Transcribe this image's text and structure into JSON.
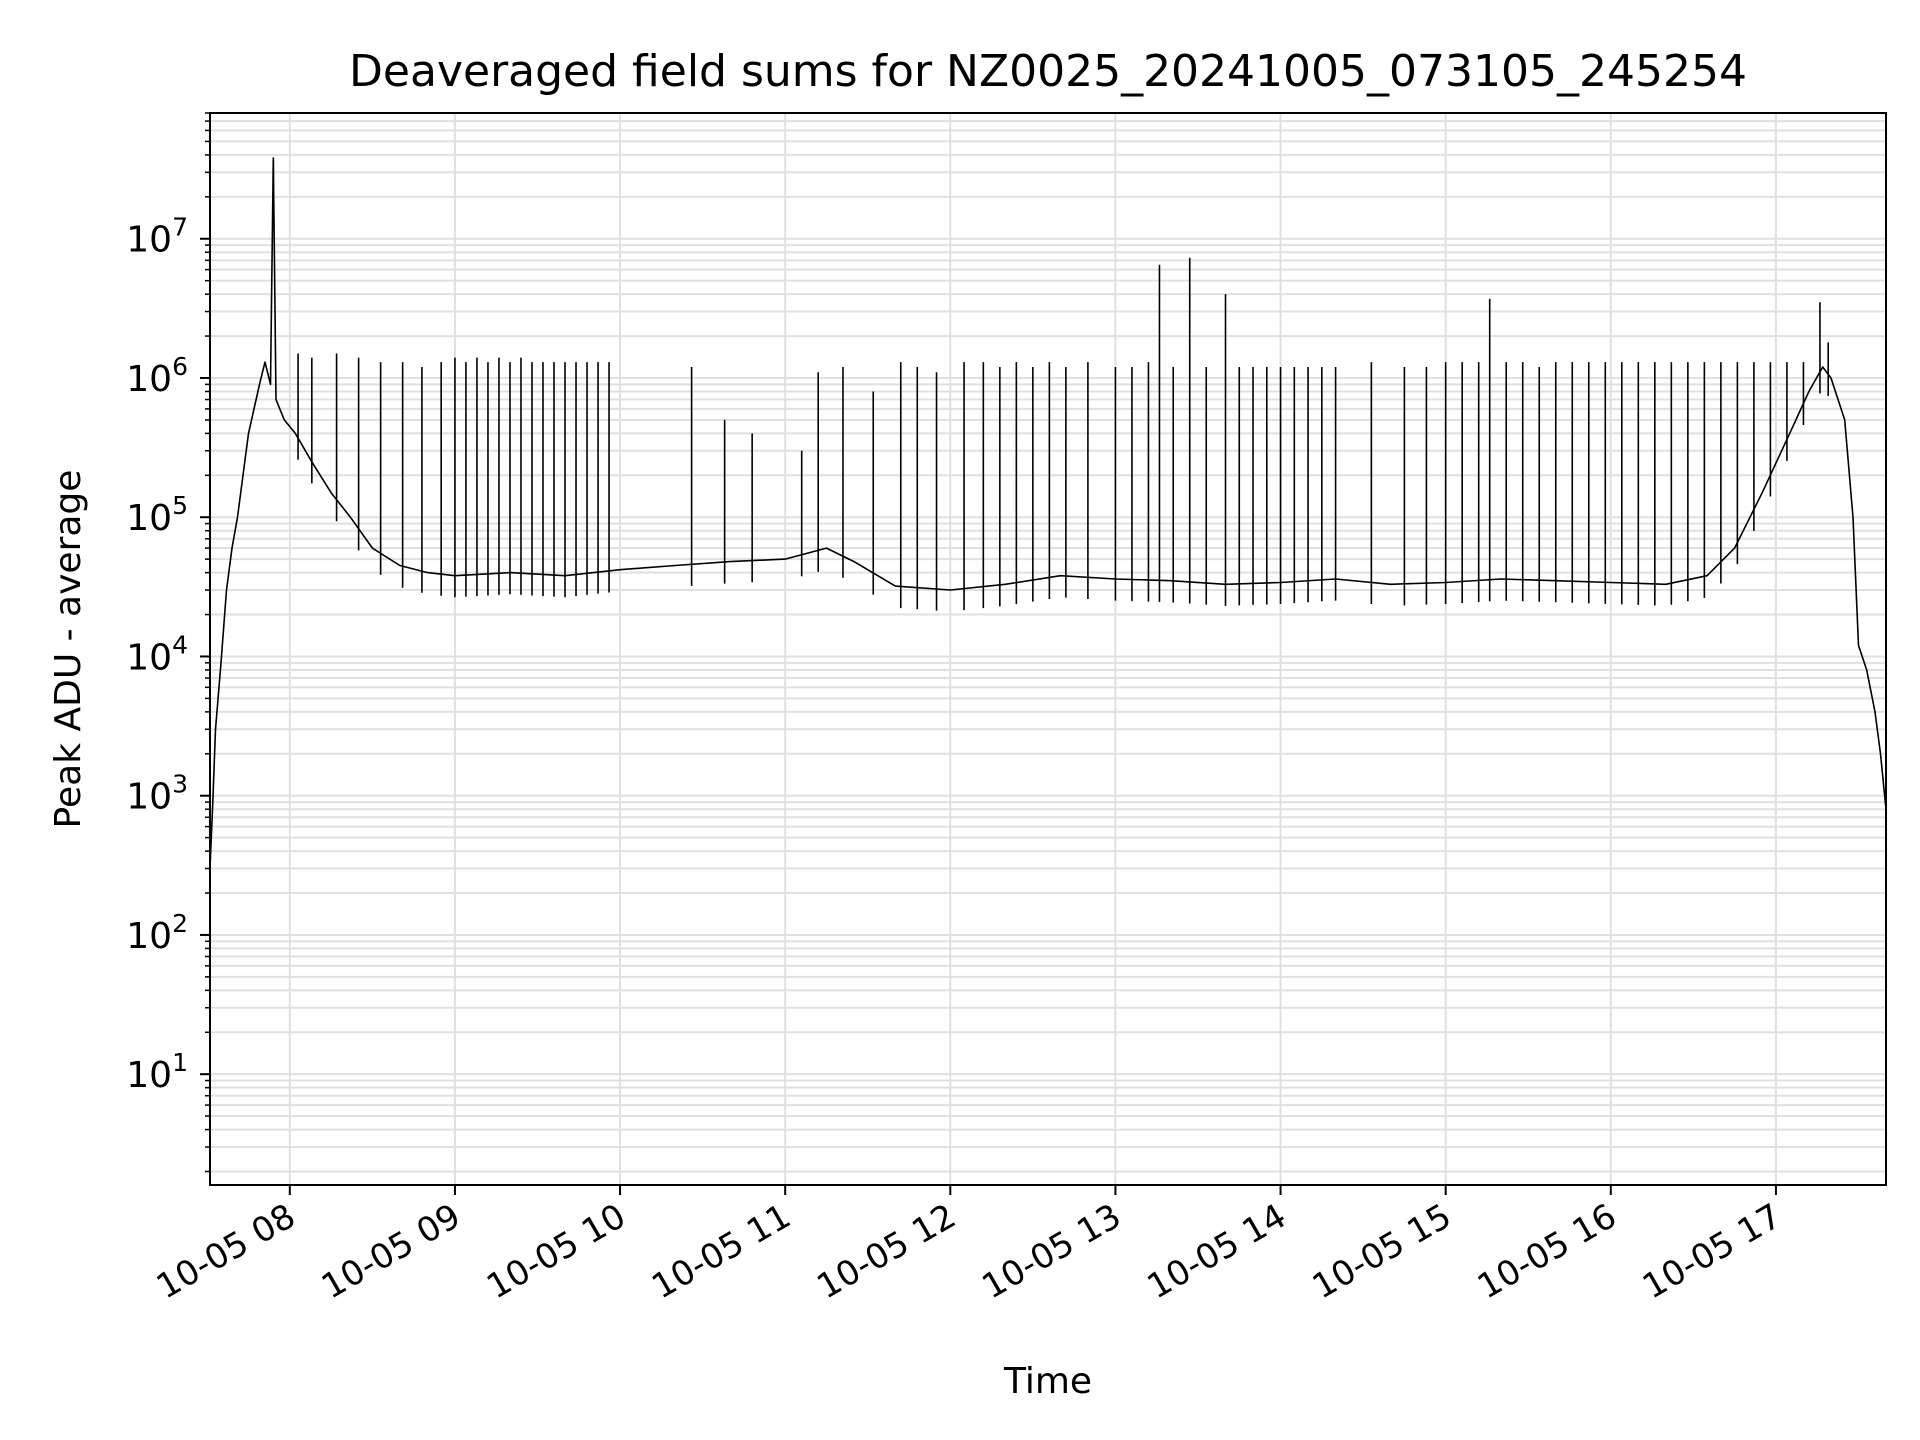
{
  "chart_data": {
    "type": "line",
    "title": "Deaveraged field sums for NZ0025_20241005_073105_245254",
    "xlabel": "Time",
    "ylabel": "Peak ADU - average",
    "yscale": "log",
    "ylim": [
      1.6,
      80000000
    ],
    "xlim": [
      "2024-10-05 07:31",
      "2024-10-05 17:40"
    ],
    "grid": true,
    "grid_color": "#e0e0e0",
    "line_color": "#000000",
    "x_ticks": [
      {
        "value": "2024-10-05 08:00",
        "label": "10-05 08"
      },
      {
        "value": "2024-10-05 09:00",
        "label": "10-05 09"
      },
      {
        "value": "2024-10-05 10:00",
        "label": "10-05 10"
      },
      {
        "value": "2024-10-05 11:00",
        "label": "10-05 11"
      },
      {
        "value": "2024-10-05 12:00",
        "label": "10-05 12"
      },
      {
        "value": "2024-10-05 13:00",
        "label": "10-05 13"
      },
      {
        "value": "2024-10-05 14:00",
        "label": "10-05 14"
      },
      {
        "value": "2024-10-05 15:00",
        "label": "10-05 15"
      },
      {
        "value": "2024-10-05 16:00",
        "label": "10-05 16"
      },
      {
        "value": "2024-10-05 17:00",
        "label": "10-05 17"
      }
    ],
    "y_ticks": [
      {
        "value": 10,
        "base": "10",
        "exp": "1"
      },
      {
        "value": 100,
        "base": "10",
        "exp": "2"
      },
      {
        "value": 1000,
        "base": "10",
        "exp": "3"
      },
      {
        "value": 10000,
        "base": "10",
        "exp": "4"
      },
      {
        "value": 100000,
        "base": "10",
        "exp": "5"
      },
      {
        "value": 1000000,
        "base": "10",
        "exp": "6"
      },
      {
        "value": 10000000,
        "base": "10",
        "exp": "7"
      }
    ],
    "series": [
      {
        "points": [
          [
            "2024-10-05 07:31",
            300
          ],
          [
            "2024-10-05 07:32",
            900
          ],
          [
            "2024-10-05 07:33",
            3000
          ],
          [
            "2024-10-05 07:35",
            9000
          ],
          [
            "2024-10-05 07:37",
            30000
          ],
          [
            "2024-10-05 07:39",
            60000
          ],
          [
            "2024-10-05 07:41",
            100000
          ],
          [
            "2024-10-05 07:43",
            200000
          ],
          [
            "2024-10-05 07:45",
            400000
          ],
          [
            "2024-10-05 07:47",
            600000
          ],
          [
            "2024-10-05 07:49",
            900000
          ],
          [
            "2024-10-05 07:51",
            1300000
          ],
          [
            "2024-10-05 07:53",
            900000
          ],
          [
            "2024-10-05 07:54",
            38000000
          ],
          [
            "2024-10-05 07:55",
            700000
          ],
          [
            "2024-10-05 07:58",
            500000
          ],
          [
            "2024-10-05 08:02",
            400000
          ],
          [
            "2024-10-05 08:08",
            250000
          ],
          [
            "2024-10-05 08:15",
            150000
          ],
          [
            "2024-10-05 08:22",
            100000
          ],
          [
            "2024-10-05 08:30",
            60000
          ],
          [
            "2024-10-05 08:40",
            45000
          ],
          [
            "2024-10-05 08:50",
            40000
          ],
          [
            "2024-10-05 09:00",
            38000
          ],
          [
            "2024-10-05 09:20",
            40000
          ],
          [
            "2024-10-05 09:40",
            38000
          ],
          [
            "2024-10-05 10:00",
            42000
          ],
          [
            "2024-10-05 10:20",
            45000
          ],
          [
            "2024-10-05 10:40",
            48000
          ],
          [
            "2024-10-05 11:00",
            50000
          ],
          [
            "2024-10-05 11:15",
            60000
          ],
          [
            "2024-10-05 11:25",
            48000
          ],
          [
            "2024-10-05 11:40",
            32000
          ],
          [
            "2024-10-05 12:00",
            30000
          ],
          [
            "2024-10-05 12:20",
            33000
          ],
          [
            "2024-10-05 12:40",
            38000
          ],
          [
            "2024-10-05 13:00",
            36000
          ],
          [
            "2024-10-05 13:20",
            35000
          ],
          [
            "2024-10-05 13:40",
            33000
          ],
          [
            "2024-10-05 14:00",
            34000
          ],
          [
            "2024-10-05 14:20",
            36000
          ],
          [
            "2024-10-05 14:40",
            33000
          ],
          [
            "2024-10-05 15:00",
            34000
          ],
          [
            "2024-10-05 15:20",
            36000
          ],
          [
            "2024-10-05 15:40",
            35000
          ],
          [
            "2024-10-05 16:00",
            34000
          ],
          [
            "2024-10-05 16:20",
            33000
          ],
          [
            "2024-10-05 16:35",
            38000
          ],
          [
            "2024-10-05 16:45",
            60000
          ],
          [
            "2024-10-05 16:55",
            150000
          ],
          [
            "2024-10-05 17:05",
            400000
          ],
          [
            "2024-10-05 17:12",
            800000
          ],
          [
            "2024-10-05 17:17",
            1200000
          ],
          [
            "2024-10-05 17:20",
            1000000
          ],
          [
            "2024-10-05 17:25",
            500000
          ],
          [
            "2024-10-05 17:28",
            100000
          ],
          [
            "2024-10-05 17:30",
            12000
          ],
          [
            "2024-10-05 17:33",
            8000
          ],
          [
            "2024-10-05 17:36",
            4000
          ],
          [
            "2024-10-05 17:38",
            2000
          ],
          [
            "2024-10-05 17:40",
            800
          ]
        ],
        "spikes": [
          [
            "2024-10-05 07:54",
            38000000
          ],
          [
            "2024-10-05 08:03",
            1500000
          ],
          [
            "2024-10-05 08:08",
            1400000
          ],
          [
            "2024-10-05 08:17",
            1500000
          ],
          [
            "2024-10-05 08:25",
            1400000
          ],
          [
            "2024-10-05 08:33",
            1300000
          ],
          [
            "2024-10-05 08:41",
            1300000
          ],
          [
            "2024-10-05 08:48",
            1200000
          ],
          [
            "2024-10-05 08:55",
            1300000
          ],
          [
            "2024-10-05 09:00",
            1400000
          ],
          [
            "2024-10-05 09:04",
            1300000
          ],
          [
            "2024-10-05 09:08",
            1400000
          ],
          [
            "2024-10-05 09:12",
            1300000
          ],
          [
            "2024-10-05 09:16",
            1400000
          ],
          [
            "2024-10-05 09:20",
            1300000
          ],
          [
            "2024-10-05 09:24",
            1400000
          ],
          [
            "2024-10-05 09:28",
            1300000
          ],
          [
            "2024-10-05 09:32",
            1300000
          ],
          [
            "2024-10-05 09:36",
            1300000
          ],
          [
            "2024-10-05 09:40",
            1300000
          ],
          [
            "2024-10-05 09:44",
            1300000
          ],
          [
            "2024-10-05 09:48",
            1300000
          ],
          [
            "2024-10-05 09:52",
            1300000
          ],
          [
            "2024-10-05 09:56",
            1300000
          ],
          [
            "2024-10-05 10:26",
            1200000
          ],
          [
            "2024-10-05 10:38",
            500000
          ],
          [
            "2024-10-05 10:48",
            400000
          ],
          [
            "2024-10-05 11:06",
            300000
          ],
          [
            "2024-10-05 11:12",
            1100000
          ],
          [
            "2024-10-05 11:21",
            1200000
          ],
          [
            "2024-10-05 11:32",
            800000
          ],
          [
            "2024-10-05 11:42",
            1300000
          ],
          [
            "2024-10-05 11:48",
            1200000
          ],
          [
            "2024-10-05 11:55",
            1100000
          ],
          [
            "2024-10-05 12:05",
            1300000
          ],
          [
            "2024-10-05 12:12",
            1300000
          ],
          [
            "2024-10-05 12:18",
            1200000
          ],
          [
            "2024-10-05 12:24",
            1300000
          ],
          [
            "2024-10-05 12:30",
            1200000
          ],
          [
            "2024-10-05 12:36",
            1300000
          ],
          [
            "2024-10-05 12:42",
            1200000
          ],
          [
            "2024-10-05 12:50",
            1300000
          ],
          [
            "2024-10-05 13:00",
            1200000
          ],
          [
            "2024-10-05 13:06",
            1200000
          ],
          [
            "2024-10-05 13:12",
            1300000
          ],
          [
            "2024-10-05 13:16",
            6500000
          ],
          [
            "2024-10-05 13:21",
            1200000
          ],
          [
            "2024-10-05 13:27",
            7300000
          ],
          [
            "2024-10-05 13:33",
            1200000
          ],
          [
            "2024-10-05 13:40",
            4000000
          ],
          [
            "2024-10-05 13:45",
            1200000
          ],
          [
            "2024-10-05 13:50",
            1200000
          ],
          [
            "2024-10-05 13:55",
            1200000
          ],
          [
            "2024-10-05 14:00",
            1200000
          ],
          [
            "2024-10-05 14:05",
            1200000
          ],
          [
            "2024-10-05 14:10",
            1200000
          ],
          [
            "2024-10-05 14:15",
            1200000
          ],
          [
            "2024-10-05 14:20",
            1200000
          ],
          [
            "2024-10-05 14:33",
            1300000
          ],
          [
            "2024-10-05 14:45",
            1200000
          ],
          [
            "2024-10-05 14:53",
            1200000
          ],
          [
            "2024-10-05 15:00",
            1300000
          ],
          [
            "2024-10-05 15:06",
            1300000
          ],
          [
            "2024-10-05 15:12",
            1300000
          ],
          [
            "2024-10-05 15:16",
            3700000
          ],
          [
            "2024-10-05 15:22",
            1300000
          ],
          [
            "2024-10-05 15:28",
            1300000
          ],
          [
            "2024-10-05 15:34",
            1200000
          ],
          [
            "2024-10-05 15:40",
            1300000
          ],
          [
            "2024-10-05 15:46",
            1300000
          ],
          [
            "2024-10-05 15:52",
            1300000
          ],
          [
            "2024-10-05 15:58",
            1300000
          ],
          [
            "2024-10-05 16:04",
            1300000
          ],
          [
            "2024-10-05 16:10",
            1300000
          ],
          [
            "2024-10-05 16:16",
            1300000
          ],
          [
            "2024-10-05 16:22",
            1300000
          ],
          [
            "2024-10-05 16:28",
            1300000
          ],
          [
            "2024-10-05 16:34",
            1300000
          ],
          [
            "2024-10-05 16:40",
            1300000
          ],
          [
            "2024-10-05 16:46",
            1300000
          ],
          [
            "2024-10-05 16:52",
            1300000
          ],
          [
            "2024-10-05 16:58",
            1300000
          ],
          [
            "2024-10-05 17:04",
            1300000
          ],
          [
            "2024-10-05 17:10",
            1300000
          ],
          [
            "2024-10-05 17:16",
            3500000
          ],
          [
            "2024-10-05 17:19",
            1800000
          ]
        ]
      }
    ]
  }
}
